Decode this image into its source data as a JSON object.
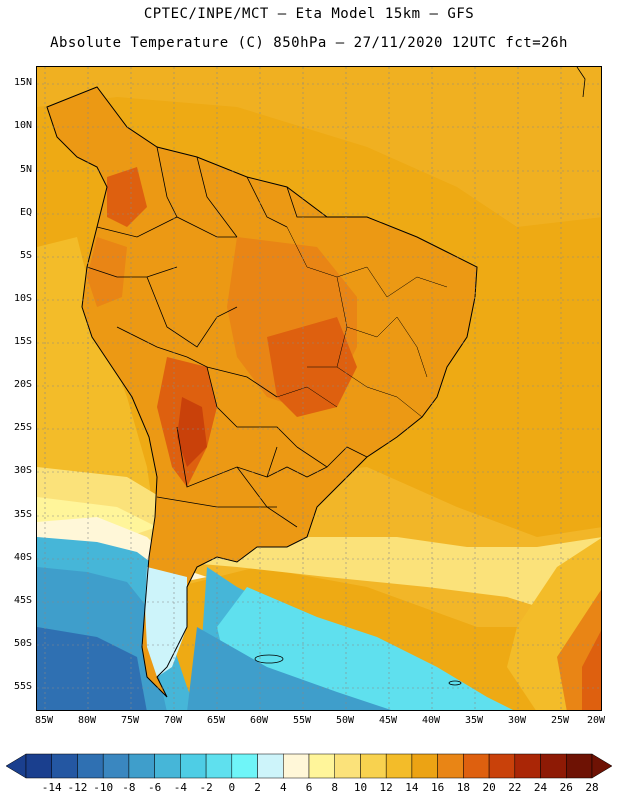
{
  "header": {
    "line1": "CPTEC/INPE/MCT –  Eta Model 15km – GFS",
    "line2": "Absolute Temperature (C) 850hPa – 27/11/2020 12UTC fct=26h"
  },
  "map": {
    "latitude_labels": [
      "15N",
      "10N",
      "5N",
      "EQ",
      "5S",
      "10S",
      "15S",
      "20S",
      "25S",
      "30S",
      "35S",
      "40S",
      "45S",
      "50S",
      "55S"
    ],
    "longitude_labels": [
      "85W",
      "80W",
      "75W",
      "70W",
      "65W",
      "60W",
      "55W",
      "50W",
      "45W",
      "40W",
      "35W",
      "30W",
      "25W",
      "20W"
    ]
  },
  "colorbar": {
    "labels": [
      "-14",
      "-12",
      "-10",
      "-8",
      "-6",
      "-4",
      "-2",
      "0",
      "2",
      "4",
      "6",
      "8",
      "10",
      "12",
      "14",
      "16",
      "18",
      "20",
      "22",
      "24",
      "26",
      "28"
    ],
    "colors": [
      "#1a3f8e",
      "#2457a2",
      "#2f70b2",
      "#3a87c0",
      "#3f9ecb",
      "#46b6d8",
      "#4ecde5",
      "#5fe0ee",
      "#6ff5f8",
      "#cdf4fa",
      "#fff7d8",
      "#fff59a",
      "#fbe27a",
      "#f8d24f",
      "#f3bc29",
      "#eca314",
      "#e98515",
      "#de600f",
      "#c9410a",
      "#aa2606",
      "#8e1a05",
      "#6e1204"
    ]
  }
}
